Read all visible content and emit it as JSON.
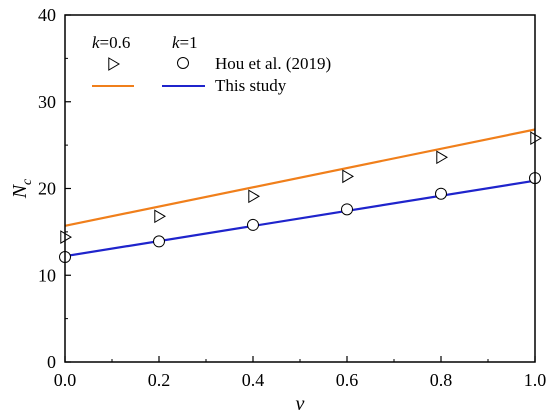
{
  "chart_data": {
    "type": "line",
    "xlabel": "v",
    "ylabel_main": "N",
    "ylabel_sub": "c",
    "xlim": [
      0,
      1
    ],
    "ylim": [
      0,
      40
    ],
    "xticks": [
      "0.0",
      "0.2",
      "0.4",
      "0.6",
      "0.8",
      "1.0"
    ],
    "yticks": [
      "0",
      "10",
      "20",
      "30",
      "40"
    ],
    "grid": false,
    "legend": {
      "placement": "top-left",
      "col1_header_var": "k",
      "col1_header_val": "=0.6",
      "col2_header_var": "k",
      "col2_header_val": "=1",
      "marker_label": "Hou et al. (2019)",
      "line_label": "This study"
    },
    "series": [
      {
        "name": "k=0.6",
        "color": "#F07F1B",
        "marker": "triangle-right",
        "markers": {
          "x": [
            0.0,
            0.2,
            0.4,
            0.6,
            0.8,
            1.0
          ],
          "y": [
            14.4,
            16.8,
            19.1,
            21.4,
            23.6,
            25.8
          ]
        },
        "line": {
          "x": [
            0.0,
            1.0
          ],
          "y": [
            15.7,
            26.8
          ]
        }
      },
      {
        "name": "k=1",
        "color": "#1F24CC",
        "marker": "circle",
        "markers": {
          "x": [
            0.0,
            0.2,
            0.4,
            0.6,
            0.8,
            1.0
          ],
          "y": [
            12.1,
            13.9,
            15.8,
            17.6,
            19.4,
            21.2
          ]
        },
        "line": {
          "x": [
            0.0,
            1.0
          ],
          "y": [
            12.2,
            20.9
          ]
        }
      }
    ]
  }
}
